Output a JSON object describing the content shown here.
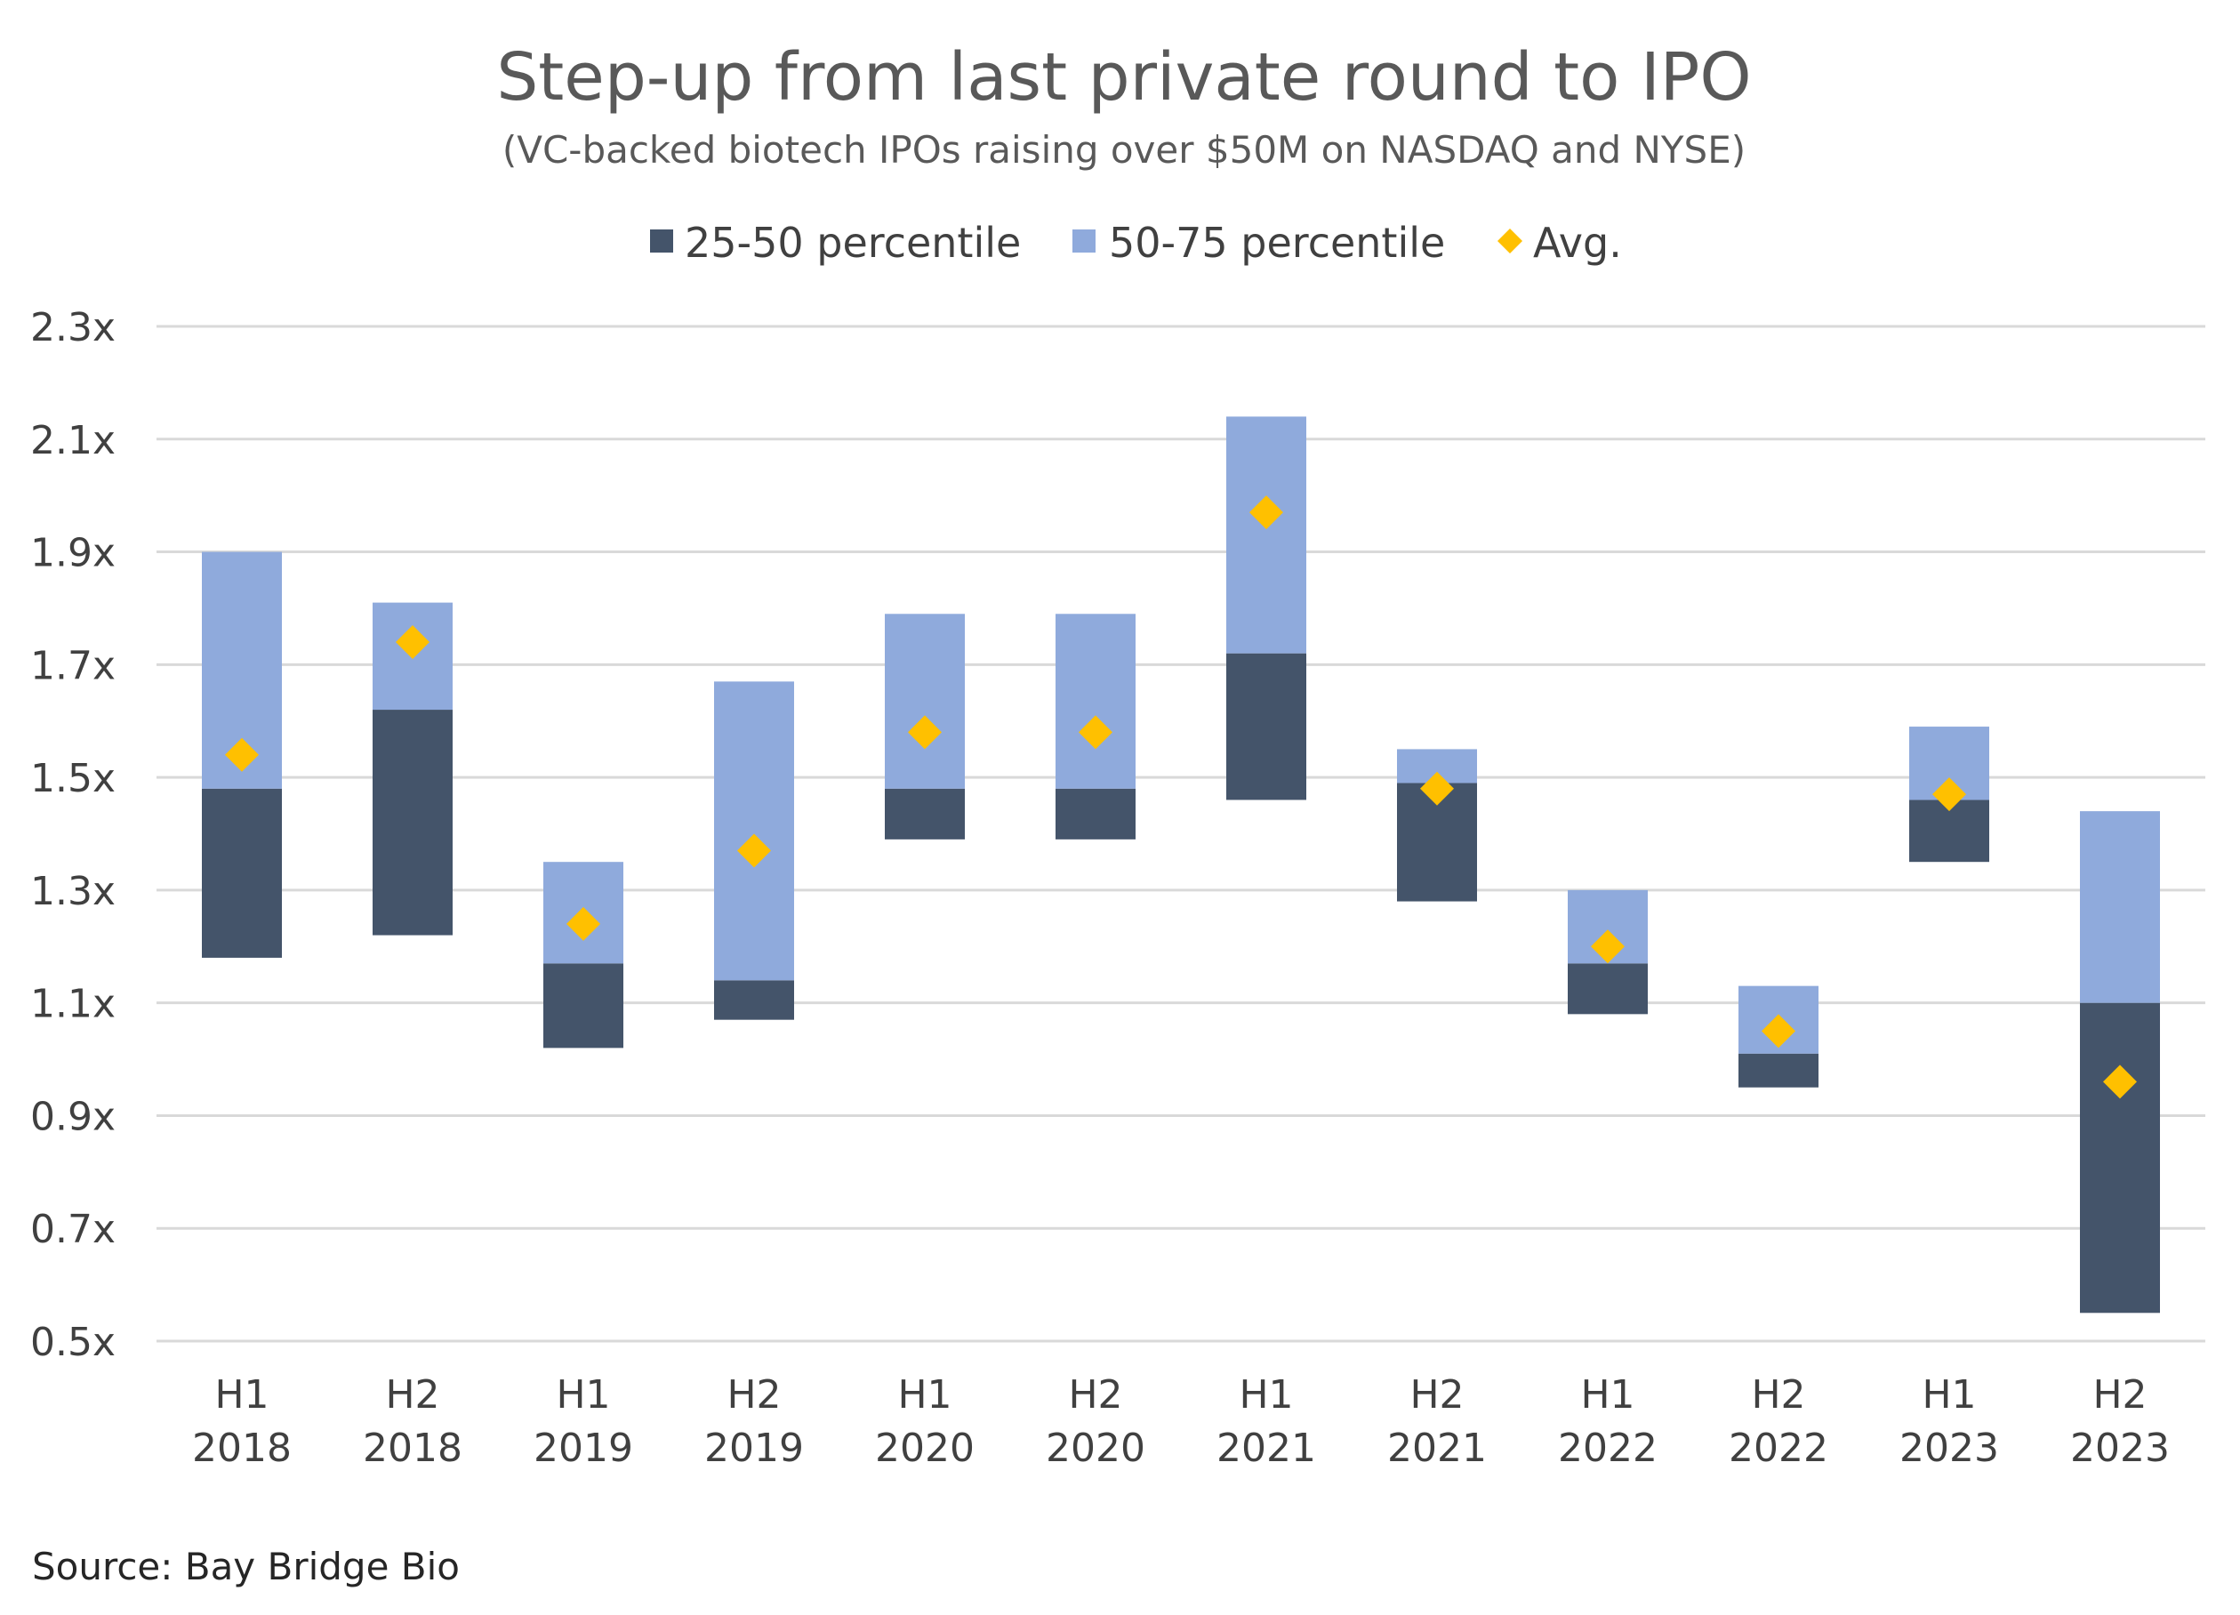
{
  "chart_data": {
    "type": "bar",
    "title": "Step-up from last private round to IPO",
    "subtitle": "(VC-backed biotech IPOs raising  over $50M on NASDAQ and NYSE)",
    "source": "Source: Bay Bridge Bio",
    "categories": [
      [
        "H1",
        "2018"
      ],
      [
        "H2",
        "2018"
      ],
      [
        "H1",
        "2019"
      ],
      [
        "H2",
        "2019"
      ],
      [
        "H1",
        "2020"
      ],
      [
        "H2",
        "2020"
      ],
      [
        "H1",
        "2021"
      ],
      [
        "H2",
        "2021"
      ],
      [
        "H1",
        "2022"
      ],
      [
        "H2",
        "2022"
      ],
      [
        "H1",
        "2023"
      ],
      [
        "H2",
        "2023"
      ]
    ],
    "series": [
      {
        "name": "25-50 percentile",
        "low": [
          1.18,
          1.22,
          1.02,
          1.07,
          1.39,
          1.39,
          1.46,
          1.28,
          1.08,
          0.95,
          1.35,
          0.55
        ],
        "high": [
          1.48,
          1.62,
          1.17,
          1.14,
          1.48,
          1.48,
          1.72,
          1.49,
          1.17,
          1.01,
          1.46,
          1.1
        ]
      },
      {
        "name": "50-75 percentile",
        "low": [
          1.48,
          1.62,
          1.17,
          1.14,
          1.48,
          1.48,
          1.72,
          1.49,
          1.17,
          1.01,
          1.46,
          1.1
        ],
        "high": [
          1.9,
          1.81,
          1.35,
          1.67,
          1.79,
          1.79,
          2.14,
          1.55,
          1.3,
          1.13,
          1.59,
          1.44
        ]
      },
      {
        "name": "Avg.",
        "values": [
          1.54,
          1.74,
          1.24,
          1.37,
          1.58,
          1.58,
          1.97,
          1.48,
          1.2,
          1.05,
          1.47,
          0.96
        ]
      }
    ],
    "yticks": [
      "0.5x",
      "0.7x",
      "0.9x",
      "1.1x",
      "1.3x",
      "1.5x",
      "1.7x",
      "1.9x",
      "2.1x",
      "2.3x"
    ],
    "ylim": [
      0.5,
      2.3
    ],
    "grid": true,
    "legend_position": "top-center",
    "colors": {
      "dark": "#44546a",
      "light": "#8faadc",
      "avg": "#ffc000",
      "grid": "#d9d9d9"
    }
  }
}
